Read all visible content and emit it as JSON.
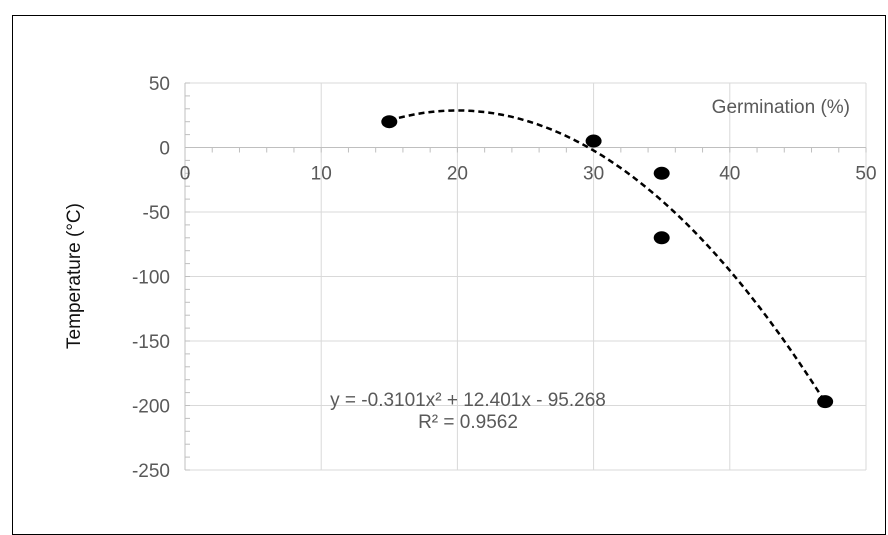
{
  "chart_data": {
    "type": "scatter",
    "title": "",
    "xlabel": "",
    "ylabel": "Temperature (°C)",
    "xlim": [
      0,
      50
    ],
    "ylim": [
      -250,
      50
    ],
    "x_ticks": [
      0,
      10,
      20,
      30,
      40,
      50
    ],
    "y_ticks": [
      50,
      0,
      -50,
      -100,
      -150,
      -200,
      -250
    ],
    "grid": true,
    "legend_position": "top-right",
    "series": [
      {
        "name": "Germination (%)",
        "color": "#000000",
        "points": [
          {
            "x": 15,
            "y": 20
          },
          {
            "x": 30,
            "y": 5
          },
          {
            "x": 35,
            "y": -20
          },
          {
            "x": 35,
            "y": -70
          },
          {
            "x": 47,
            "y": -197
          }
        ]
      }
    ],
    "trendline": {
      "type": "polynomial",
      "order": 2,
      "coefficients": [
        -0.3101,
        12.401,
        -95.268
      ],
      "x_range": [
        15,
        47
      ],
      "equation": "y = -0.3101x² + 12.401x - 95.268",
      "r_squared": "R² = 0.9562"
    }
  }
}
